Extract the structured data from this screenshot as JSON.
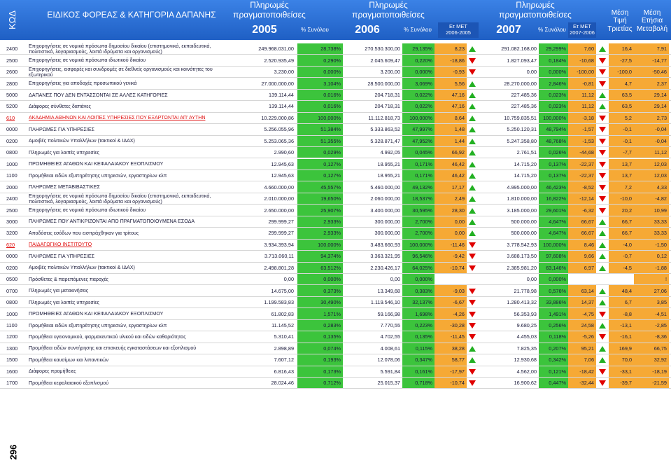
{
  "header": {
    "code": "ΚΩΔ",
    "title": "ΕΙΔΙΚΟΣ ΦΟΡΕΑΣ & ΚΑΤΗΓΟΡΙΑ ΔΑΠΑΝΗΣ",
    "groups": [
      {
        "heading": "Πληρωμές πραγματοποιθείσες",
        "year": "2005",
        "share": "% Συνόλου"
      },
      {
        "heading": "Πληρωμές πραγματοποιθείσες",
        "year": "2006",
        "share": "% Συνόλου",
        "change_label": "Ετ ΜΕΤ",
        "change_period": "2006-2005"
      },
      {
        "heading": "Πληρωμές πραγματοποιθείσες",
        "year": "2007",
        "share": "% Συνόλου",
        "change_label": "Ετ ΜΕΤ",
        "change_period": "2007-2006"
      }
    ],
    "mean": "Μέση Τιμή Τριετίας",
    "annual": "Μέση Ετήσια Μεταβολή"
  },
  "table": {
    "rows": [
      [
        "2400",
        "Επιχορηγήσεις σε νομικά πρόσωπα δημοσίου δικαίου (επιστημονικά, εκπαιδευτικά, πολιτιστικά, λογαριασμούς, λοιπά ιδρύματα και οργανισμούς)",
        "249.968.031,00",
        "28,738%",
        "270.530.300,00",
        "29,135%",
        "8,23",
        "291.082.168,00",
        "29,299%",
        "7,60",
        "16,4",
        "7,91"
      ],
      [
        "2500",
        "Επιχορηγήσεις σε νομικά πρόσωπα ιδιωτικού δικαίου",
        "2.520.935,49",
        "0,290%",
        "2.045.609,47",
        "0,220%",
        "-18,86",
        "1.827.093,47",
        "0,184%",
        "-10,68",
        "-27,5",
        "-14,77"
      ],
      [
        "2600",
        "Επιχορηγήσεις, εισφορές και συνδρομές σε διεθνείς οργανισμούς και κοινότητες του εξωτερικού",
        "3.230,00",
        "0,000%",
        "3.200,00",
        "0,000%",
        "-0,93",
        "0,00",
        "0,000%",
        "-100,00",
        "-100,0",
        "-50,46"
      ],
      [
        "2800",
        "Επιχορηγήσεις για αποδοχές προσωπικού γενικά",
        "27.000.000,00",
        "3,104%",
        "28.500.000,00",
        "3,069%",
        "5,56",
        "28.270.000,00",
        "2,846%",
        "-0,81",
        "4,7",
        "2,37"
      ],
      [
        "5000",
        "ΔΑΠΑΝΕΣ ΠΟΥ ΔΕΝ ΕΝΤΑΣΣΟΝΤΑΙ ΣΕ ΑΛΛΕΣ ΚΑΤΗΓΟΡΙΕΣ",
        "139.114,44",
        "0,016%",
        "204.718,31",
        "0,022%",
        "47,16",
        "227.485,36",
        "0,023%",
        "11,12",
        "63,5",
        "29,14"
      ],
      [
        "5200",
        "Διάφορες σύνθετες δαπάνες",
        "139.114,44",
        "0,016%",
        "204.718,31",
        "0,022%",
        "47,16",
        "227.485,36",
        "0,023%",
        "11,12",
        "63,5",
        "29,14"
      ],
      [
        "610",
        "ΑΚΑΔΗΜΙΑ ΑΘΗΝΩΝ ΚΑΙ ΛΟΙΠΕΣ ΥΠΗΡΕΣΙΕΣ ΠΟΥ ΕΞΑΡΤΩΝΤΑΙ ΑΠ' ΑΥΤΗΝ",
        "10.229.000,86",
        "100,000%",
        "11.112.818,73",
        "100,000%",
        "8,64",
        "10.759.835,51",
        "100,000%",
        "-3,18",
        "5,2",
        "2,73"
      ],
      [
        "0000",
        "ΠΛΗΡΩΜΕΣ ΓΙΑ ΥΠΗΡΕΣΙΕΣ",
        "5.256.055,96",
        "51,384%",
        "5.333.863,52",
        "47,997%",
        "1,48",
        "5.250.120,31",
        "48,794%",
        "-1,57",
        "-0,1",
        "-0,04"
      ],
      [
        "0200",
        "Αμοιβές πολιτικών Υπαλλήλων (τακτικοί & ΙΔΑΧ)",
        "5.253.065,36",
        "51,355%",
        "5.328.871,47",
        "47,952%",
        "1,44",
        "5.247.358,80",
        "48,768%",
        "-1,53",
        "-0,1",
        "-0,04"
      ],
      [
        "0800",
        "Πληρωμές για λοιπές υπηρεσίες",
        "2.990,60",
        "0,029%",
        "4.992,05",
        "0,045%",
        "66,92",
        "2.761,51",
        "0,026%",
        "-44,68",
        "-7,7",
        "11,12"
      ],
      [
        "1000",
        "ΠΡΟΜΗΘΕΙΕΣ ΑΓΑΘΩΝ ΚΑΙ ΚΕΦΑΛΑΙΑΚΟΥ ΕΞΟΠΛΙΣΜΟΥ",
        "12.945,63",
        "0,127%",
        "18.955,21",
        "0,171%",
        "46,42",
        "14.715,20",
        "0,137%",
        "-22,37",
        "13,7",
        "12,03"
      ],
      [
        "1100",
        "Προμήθειαι ειδών εξυπηρέτησης υπηρεσιών, εργαστηρίων κλπ",
        "12.945,63",
        "0,127%",
        "18.955,21",
        "0,171%",
        "46,42",
        "14.715,20",
        "0,137%",
        "-22,37",
        "13,7",
        "12,03"
      ],
      [
        "2000",
        "ΠΛΗΡΩΜΕΣ ΜΕΤΑΒΙΒΑΣΤΙΚΕΣ",
        "4.660.000,00",
        "45,557%",
        "5.460.000,00",
        "49,132%",
        "17,17",
        "4.995.000,00",
        "46,423%",
        "-8,52",
        "7,2",
        "4,33"
      ],
      [
        "2400",
        "Επιχορηγήσεις σε νομικά πρόσωπα δημοσίου δικαίου (επιστημονικά, εκπαιδευτικά, πολιτιστικά, λογαριασμούς, λοιπά ιδρύματα και οργανισμούς)",
        "2.010.000,00",
        "19,650%",
        "2.060.000,00",
        "18,537%",
        "2,49",
        "1.810.000,00",
        "16,822%",
        "-12,14",
        "-10,0",
        "-4,82"
      ],
      [
        "2500",
        "Επιχορηγήσεις σε νομικά πρόσωπα ιδιωτικού δικαίου",
        "2.650.000,00",
        "25,907%",
        "3.400.000,00",
        "30,595%",
        "28,30",
        "3.185.000,00",
        "29,601%",
        "-6,32",
        "20,2",
        "10,99"
      ],
      [
        "3000",
        "ΠΛΗΡΩΜΕΣ ΠΟΥ ΑΝΤΙΚΡΙΖΟΝΤΑΙ ΑΠΟ ΠΡΑΓΜΑΤΟΠΟΙΟΥΜΕΝΑ ΕΣΟΔΑ",
        "299.999,27",
        "2,933%",
        "300.000,00",
        "2,700%",
        "0,00",
        "500.000,00",
        "4,647%",
        "66,67",
        "66,7",
        "33,33"
      ],
      [
        "3200",
        "Αποδόσεις εσόδων που εισπράχθηκαν για τρίτους",
        "299.999,27",
        "2,933%",
        "300.000,00",
        "2,700%",
        "0,00",
        "500.000,00",
        "4,647%",
        "66,67",
        "66,7",
        "33,33"
      ],
      [
        "620",
        "ΠΑΙΔΑΓΩΓΙΚΟ ΙΝΣΤΙΤΟΥΤΟ",
        "3.934.393,94",
        "100,000%",
        "3.483.660,93",
        "100,000%",
        "-11,46",
        "3.778.542,93",
        "100,000%",
        "8,46",
        "-4,0",
        "-1,50"
      ],
      [
        "0000",
        "ΠΛΗΡΩΜΕΣ ΓΙΑ ΥΠΗΡΕΣΙΕΣ",
        "3.713.060,11",
        "94,374%",
        "3.363.321,95",
        "96,546%",
        "-9,42",
        "3.688.173,50",
        "97,608%",
        "9,66",
        "-0,7",
        "0,12"
      ],
      [
        "0200",
        "Αμοιβές πολιτικών Υπαλλήλων (τακτικοί & ΙΔΑΧ)",
        "2.498.801,28",
        "63,512%",
        "2.230.426,17",
        "64,025%",
        "-10,74",
        "2.385.981,20",
        "63,146%",
        "6,97",
        "-4,5",
        "-1,88"
      ],
      [
        "0500",
        "Πρόσθετες & παρεπόμενες παροχές",
        "0,00",
        "0,000%",
        "0,00",
        "0,000%",
        null,
        "0,00",
        "0,000%",
        null,
        null,
        "!"
      ],
      [
        "0700",
        "Πληρωμές για μετακινήσεις",
        "14.675,00",
        "0,373%",
        "13.349,68",
        "0,383%",
        "-9,03",
        "21.778,98",
        "0,576%",
        "63,14",
        "48,4",
        "27,06"
      ],
      [
        "0800",
        "Πληρωμές για λοιπές υπηρεσίες",
        "1.199.583,83",
        "30,490%",
        "1.119.546,10",
        "32,137%",
        "-6,67",
        "1.280.413,32",
        "33,886%",
        "14,37",
        "6,7",
        "3,85"
      ],
      [
        "1000",
        "ΠΡΟΜΗΘΕΙΕΣ ΑΓΑΘΩΝ ΚΑΙ ΚΕΦΑΛΑΙΑΚΟΥ ΕΞΟΠΛΙΣΜΟΥ",
        "61.802,83",
        "1,571%",
        "59.166,98",
        "1,698%",
        "-4,26",
        "56.353,93",
        "1,491%",
        "-4,75",
        "-8,8",
        "-4,51"
      ],
      [
        "1100",
        "Προμήθειαι ειδών εξυπηρέτησης υπηρεσιών, εργαστηρίων κλπ",
        "11.145,52",
        "0,283%",
        "7.770,55",
        "0,223%",
        "-30,28",
        "9.680,25",
        "0,256%",
        "24,58",
        "-13,1",
        "-2,85"
      ],
      [
        "1200",
        "Προμήθεια υγειονομικού, φαρμακευτικού υλικού και ειδών καθαριότητας",
        "5.310,41",
        "0,135%",
        "4.702,55",
        "0,135%",
        "-11,45",
        "4.455,03",
        "0,118%",
        "-5,26",
        "-16,1",
        "-8,36"
      ],
      [
        "1300",
        "Προμήθεια ειδών συντήρησης και επισκευής εγκαταστάσεων και εξοπλισμού",
        "2.898,89",
        "0,074%",
        "4.008,61",
        "0,115%",
        "38,28",
        "7.825,35",
        "0,207%",
        "95,21",
        "169,9",
        "66,75"
      ],
      [
        "1500",
        "Προμήθεια καυσίμων και λιπαντικών",
        "7.607,12",
        "0,193%",
        "12.078,06",
        "0,347%",
        "58,77",
        "12.930,68",
        "0,342%",
        "7,06",
        "70,0",
        "32,92"
      ],
      [
        "1600",
        "Διάφορες προμήθειες",
        "6.816,43",
        "0,173%",
        "5.591,84",
        "0,161%",
        "-17,97",
        "4.562,00",
        "0,121%",
        "-18,42",
        "-33,1",
        "-18,19"
      ],
      [
        "1700",
        "Προμήθεια κεφαλαιακού εξοπλισμού",
        "28.024,46",
        "0,712%",
        "25.015,37",
        "0,718%",
        "-10,74",
        "16.900,62",
        "0,447%",
        "-32,44",
        "-39,7",
        "-21,59"
      ]
    ],
    "highlight": [
      6,
      17
    ]
  },
  "footer": {
    "page": "296"
  }
}
